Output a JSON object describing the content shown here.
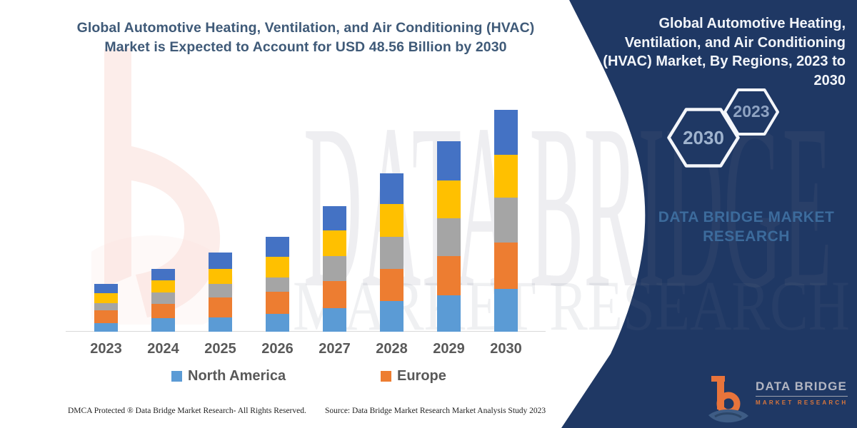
{
  "left_panel": {
    "title_line1": "Global Automotive Heating, Ventilation, and Air Conditioning (HVAC)",
    "title_line2": "Market is Expected to Account for USD 48.56 Billion by 2030"
  },
  "chart_data": {
    "type": "bar",
    "stacked": true,
    "title": "Global Automotive Heating, Ventilation, and Air Conditioning (HVAC) Market is Expected to Account for USD 48.56 Billion by 2030",
    "unit": "USD Billion",
    "categories": [
      "2023",
      "2024",
      "2025",
      "2026",
      "2027",
      "2028",
      "2029",
      "2030"
    ],
    "series": [
      {
        "name": "North America",
        "color": "#5B9BD5",
        "values": [
          1.8,
          3.0,
          3.1,
          3.9,
          5.1,
          6.7,
          8.0,
          9.3
        ]
      },
      {
        "name": "Europe",
        "color": "#ED7D31",
        "values": [
          2.9,
          3.1,
          4.4,
          4.9,
          6.0,
          7.0,
          8.6,
          10.2
        ]
      },
      {
        "name": "",
        "color": "#A5A5A5",
        "values": [
          1.6,
          2.5,
          2.9,
          3.1,
          5.4,
          7.0,
          8.3,
          9.9
        ]
      },
      {
        "name": "",
        "color": "#FFC000",
        "values": [
          2.2,
          2.6,
          3.4,
          4.5,
          5.7,
          7.3,
          8.2,
          9.4
        ]
      },
      {
        "name": "",
        "color": "#4472C4",
        "values": [
          1.9,
          2.5,
          3.6,
          4.3,
          5.3,
          6.6,
          8.6,
          9.76
        ]
      }
    ],
    "totals_estimated": [
      10.4,
      13.7,
      17.4,
      20.7,
      27.5,
      34.6,
      41.7,
      48.56
    ],
    "annotated_final_value": 48.56,
    "legend": {
      "entries": [
        "North America",
        "Europe"
      ],
      "position": "bottom"
    },
    "xlabel": "",
    "ylabel": "",
    "y_axis_visible": false,
    "grid": false
  },
  "right_panel": {
    "bg_color": "#1F3864",
    "title": "Global Automotive Heating, Ventilation, and Air Conditioning (HVAC) Market, By Regions, 2023 to 2030",
    "hexagon_back_label": "2023",
    "hexagon_front_label": "2030",
    "brand_line1": "DATA BRIDGE MARKET",
    "brand_line2": "RESEARCH",
    "logo_brand": "DATA BRIDGE",
    "logo_sub": "MARKET RESEARCH"
  },
  "watermark": {
    "line1": "DATA BRIDGE",
    "line2": "MARKET RESEARCH"
  },
  "footer": {
    "dmca": "DMCA Protected ® Data Bridge Market Research-  All Rights Reserved.",
    "source": "Source: Data Bridge Market Research  Market Analysis Study 2023"
  },
  "colors": {
    "navy_panel": "#1F3864",
    "title_text": "#3F5A78",
    "axis_labels": "#595959",
    "north_america": "#5B9BD5",
    "europe": "#ED7D31",
    "gray_series": "#A5A5A5",
    "yellow_series": "#FFC000",
    "blue_series": "#4472C4",
    "logo_orange": "#E8743B"
  }
}
